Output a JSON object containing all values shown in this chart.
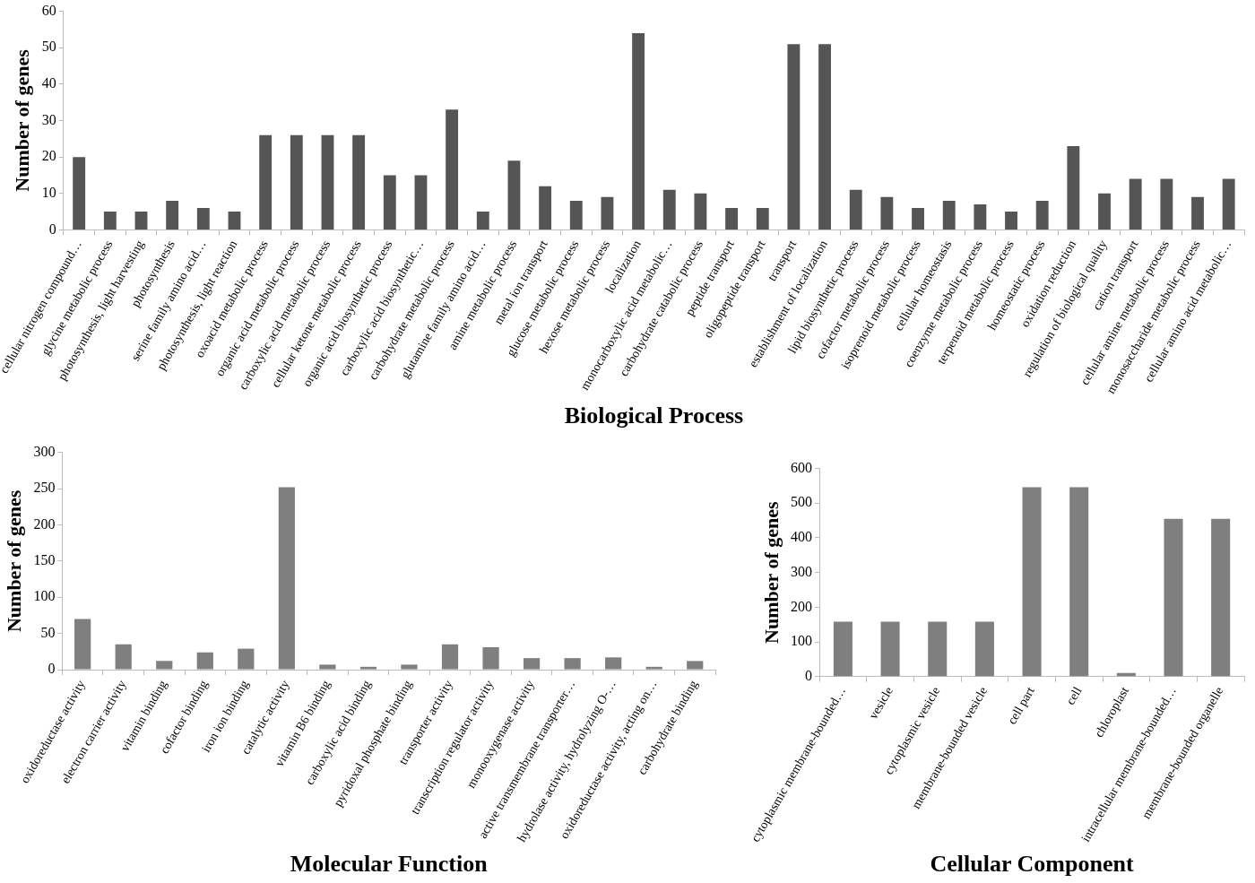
{
  "chart_data": [
    {
      "type": "bar",
      "xlabel": "Biological Process",
      "ylabel": "Number of genes",
      "color": "#555555",
      "ylim": [
        0,
        60
      ],
      "yticks": [
        0,
        10,
        20,
        30,
        40,
        50,
        60
      ],
      "grid": false,
      "categories": [
        "cellular nitrogen compound…",
        "glycine metabolic process",
        "photosynthesis, light harvesting",
        "photosynthesis",
        "serine family amino acid…",
        "photosynthesis, light reaction",
        "oxoacid metabolic process",
        "organic acid metabolic process",
        "carboxylic acid metabolic process",
        "cellular ketone metabolic process",
        "organic acid biosynthetic process",
        "carboxylic acid biosynthetic…",
        "carbohydrate metabolic process",
        "glutamine family amino acid…",
        "amine metabolic process",
        "metal ion transport",
        "glucose metabolic process",
        "hexose metabolic process",
        "localization",
        "monocarboxylic acid metabolic…",
        "carbohydrate catabolic process",
        "peptide transport",
        "oligopeptide transport",
        "transport",
        "establishment of localization",
        "lipid biosynthetic process",
        "cofactor metabolic process",
        "isoprenoid metabolic process",
        "cellular homeostasis",
        "coenzyme metabolic process",
        "terpenoid metabolic process",
        "homeostatic process",
        "oxidation reduction",
        "regulation of biological quality",
        "cation transport",
        "cellular amine metabolic process",
        "monosaccharide metabolic process",
        "cellular amino acid metabolic…"
      ],
      "values": [
        20,
        5,
        5,
        8,
        6,
        5,
        26,
        26,
        26,
        26,
        15,
        15,
        33,
        5,
        19,
        12,
        8,
        9,
        54,
        11,
        10,
        6,
        6,
        51,
        51,
        11,
        9,
        6,
        8,
        7,
        5,
        8,
        23,
        10,
        14,
        14,
        9,
        14
      ]
    },
    {
      "type": "bar",
      "xlabel": "Molecular Function",
      "ylabel": "Number of genes",
      "color": "#7f7f7f",
      "ylim": [
        0,
        300
      ],
      "yticks": [
        0,
        50,
        100,
        150,
        200,
        250,
        300
      ],
      "grid": false,
      "categories": [
        "oxidoreductase activity",
        "electron carrier activity",
        "vitamin binding",
        "cofactor binding",
        "iron ion binding",
        "catalytic activity",
        "vitamin B6 binding",
        "carboxylic acid binding",
        "pyridoxal phosphate binding",
        "transporter activity",
        "transcription regulator activity",
        "monooxygenase activity",
        "active transmembrane transporter…",
        "hydrolase activity, hydrolyzing O-…",
        "oxidoreductase activity, acting on…",
        "carbohydrate binding"
      ],
      "values": [
        70,
        35,
        12,
        24,
        29,
        252,
        7,
        4,
        7,
        35,
        31,
        16,
        16,
        17,
        4,
        12
      ]
    },
    {
      "type": "bar",
      "xlabel": "Cellular Component",
      "ylabel": "Number of genes",
      "color": "#7f7f7f",
      "ylim": [
        0,
        600
      ],
      "yticks": [
        0,
        100,
        200,
        300,
        400,
        500,
        600
      ],
      "grid": false,
      "categories": [
        "cytoplasmic membrane-bounded…",
        "vesicle",
        "cytoplasmic vesicle",
        "membrane-bounded vesicle",
        "cell part",
        "cell",
        "chloroplast",
        "intracellular membrane-bounded…",
        "membrane-bounded organelle"
      ],
      "values": [
        158,
        158,
        158,
        158,
        546,
        546,
        10,
        455,
        455
      ]
    }
  ]
}
